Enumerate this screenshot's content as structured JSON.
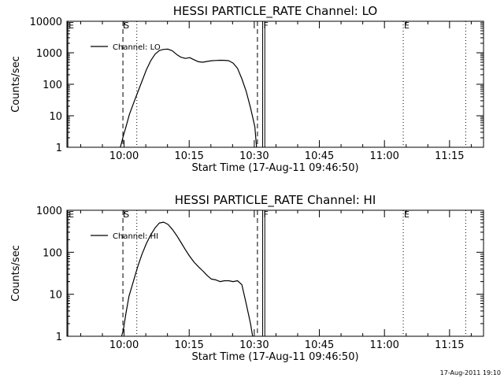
{
  "footer": "17-Aug-2011 19:10",
  "chart_data": [
    {
      "type": "line",
      "title": "HESSI PARTICLE_RATE Channel: LO",
      "xlabel": "Start Time (17-Aug-11 09:46:50)",
      "ylabel": "Counts/sec",
      "x_unit": "minutes since 09:46:50",
      "xlim": [
        0,
        96
      ],
      "ylim": [
        1,
        10000
      ],
      "yscale": "log",
      "grid": false,
      "x_ticks": [
        {
          "x": 13.17,
          "label": "10:00"
        },
        {
          "x": 28.17,
          "label": "10:15"
        },
        {
          "x": 43.17,
          "label": "10:30"
        },
        {
          "x": 58.17,
          "label": "10:45"
        },
        {
          "x": 73.17,
          "label": "11:00"
        },
        {
          "x": 88.17,
          "label": "11:15"
        }
      ],
      "y_ticks": [
        {
          "y": 1,
          "label": "1"
        },
        {
          "y": 10,
          "label": "10"
        },
        {
          "y": 100,
          "label": "100"
        },
        {
          "y": 1000,
          "label": "1000"
        },
        {
          "y": 10000,
          "label": "10000"
        }
      ],
      "legend": {
        "entries": [
          "Channel: LO"
        ],
        "placement": "top-left"
      },
      "markers": [
        {
          "x": 0.2,
          "style": "solid",
          "label": "E"
        },
        {
          "x": 12.9,
          "style": "dashed",
          "label": "S"
        },
        {
          "x": 16.1,
          "style": "dotted",
          "label": ""
        },
        {
          "x": 43.9,
          "style": "dashed",
          "label": ""
        },
        {
          "x": 45.1,
          "style": "solid",
          "label": "F"
        },
        {
          "x": 45.6,
          "style": "solid",
          "label": ""
        },
        {
          "x": 77.5,
          "style": "dotted",
          "label": "E"
        },
        {
          "x": 91.9,
          "style": "dotted",
          "label": ""
        }
      ],
      "series": [
        {
          "name": "Channel: LO",
          "x": [
            12.3,
            12.6,
            13.0,
            13.6,
            14.4,
            15.3,
            16.3,
            17.3,
            18.3,
            19.3,
            20.3,
            21.3,
            22.3,
            23.3,
            24.3,
            25.3,
            26.3,
            27.3,
            28.3,
            29.3,
            30.3,
            31.3,
            32.3,
            33.3,
            34.3,
            35.3,
            36.3,
            37.3,
            38.3,
            39.3,
            40.3,
            41.3,
            42.3,
            43.3,
            43.7
          ],
          "y": [
            1,
            1.4,
            2.3,
            4.4,
            11,
            24,
            55,
            125,
            285,
            560,
            900,
            1180,
            1280,
            1300,
            1150,
            880,
            720,
            660,
            700,
            600,
            520,
            500,
            530,
            560,
            570,
            580,
            575,
            560,
            470,
            320,
            150,
            60,
            18,
            4.5,
            1
          ]
        }
      ]
    },
    {
      "type": "line",
      "title": "HESSI PARTICLE_RATE Channel: HI",
      "xlabel": "Start Time (17-Aug-11 09:46:50)",
      "ylabel": "Counts/sec",
      "x_unit": "minutes since 09:46:50",
      "xlim": [
        0,
        96
      ],
      "ylim": [
        1,
        1000
      ],
      "yscale": "log",
      "grid": false,
      "x_ticks": [
        {
          "x": 13.17,
          "label": "10:00"
        },
        {
          "x": 28.17,
          "label": "10:15"
        },
        {
          "x": 43.17,
          "label": "10:30"
        },
        {
          "x": 58.17,
          "label": "10:45"
        },
        {
          "x": 73.17,
          "label": "11:00"
        },
        {
          "x": 88.17,
          "label": "11:15"
        }
      ],
      "y_ticks": [
        {
          "y": 1,
          "label": "1"
        },
        {
          "y": 10,
          "label": "10"
        },
        {
          "y": 100,
          "label": "100"
        },
        {
          "y": 1000,
          "label": "1000"
        }
      ],
      "legend": {
        "entries": [
          "Channel: HI"
        ],
        "placement": "top-left"
      },
      "markers": [
        {
          "x": 0.2,
          "style": "solid",
          "label": "E"
        },
        {
          "x": 12.9,
          "style": "dashed",
          "label": "S"
        },
        {
          "x": 16.1,
          "style": "dotted",
          "label": ""
        },
        {
          "x": 43.9,
          "style": "dashed",
          "label": ""
        },
        {
          "x": 45.1,
          "style": "solid",
          "label": "F"
        },
        {
          "x": 45.6,
          "style": "solid",
          "label": ""
        },
        {
          "x": 77.5,
          "style": "dotted",
          "label": "E"
        },
        {
          "x": 91.9,
          "style": "dotted",
          "label": ""
        }
      ],
      "series": [
        {
          "name": "Channel: HI",
          "x": [
            12.6,
            13.0,
            13.6,
            14.3,
            15.3,
            16.3,
            17.3,
            18.3,
            19.3,
            20.3,
            21.3,
            22.3,
            23.3,
            24.3,
            25.3,
            26.3,
            27.3,
            28.3,
            29.3,
            30.3,
            31.3,
            32.3,
            33.3,
            34.3,
            35.3,
            36.3,
            37.3,
            38.3,
            39.3,
            40.3,
            41.3,
            42.3,
            42.8
          ],
          "y": [
            1,
            1.4,
            3.5,
            9,
            20,
            45,
            90,
            160,
            260,
            380,
            500,
            520,
            460,
            350,
            250,
            170,
            115,
            80,
            58,
            45,
            36,
            28,
            23,
            22,
            20,
            21,
            21,
            20,
            21,
            17,
            6,
            2,
            1
          ]
        }
      ]
    }
  ]
}
